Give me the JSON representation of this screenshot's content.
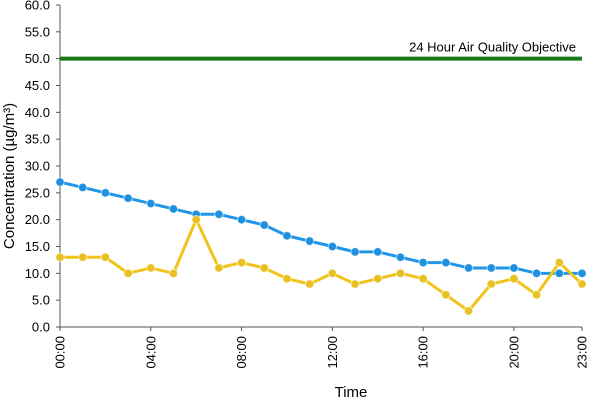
{
  "chart_data": {
    "type": "line",
    "xlabel": "Time",
    "ylabel": "Concentration (µg/m³)",
    "ylim": [
      0,
      60
    ],
    "y_ticks": [
      "0.0",
      "5.0",
      "10.0",
      "15.0",
      "20.0",
      "25.0",
      "30.0",
      "35.0",
      "40.0",
      "45.0",
      "50.0",
      "55.0",
      "60.0"
    ],
    "x_ticks": [
      "00:00",
      "04:00",
      "08:00",
      "12:00",
      "16:00",
      "20:00",
      "23:00"
    ],
    "x_tick_hours": [
      0,
      4,
      8,
      12,
      16,
      20,
      23
    ],
    "x": [
      "00:00",
      "01:00",
      "02:00",
      "03:00",
      "04:00",
      "05:00",
      "06:00",
      "07:00",
      "08:00",
      "09:00",
      "10:00",
      "11:00",
      "12:00",
      "13:00",
      "14:00",
      "15:00",
      "16:00",
      "17:00",
      "18:00",
      "19:00",
      "20:00",
      "21:00",
      "22:00",
      "23:00"
    ],
    "grid": false,
    "reference_line": {
      "value": 50,
      "label": "24 Hour Air Quality Objective",
      "color": "#1a7a1a"
    },
    "series": [
      {
        "color": "#2196e8",
        "marker_color": "#1e90e0",
        "values": [
          27,
          26,
          25,
          24,
          23,
          22,
          21,
          21,
          20,
          19,
          17,
          16,
          15,
          14,
          14,
          13,
          12,
          12,
          11,
          11,
          11,
          10,
          10,
          10
        ]
      },
      {
        "color": "#f0c419",
        "marker_color": "#e8c020",
        "values": [
          13,
          13,
          13,
          10,
          11,
          10,
          20,
          11,
          12,
          11,
          9,
          8,
          10,
          8,
          9,
          10,
          9,
          6,
          3,
          8,
          9,
          6,
          12,
          8
        ]
      }
    ]
  }
}
